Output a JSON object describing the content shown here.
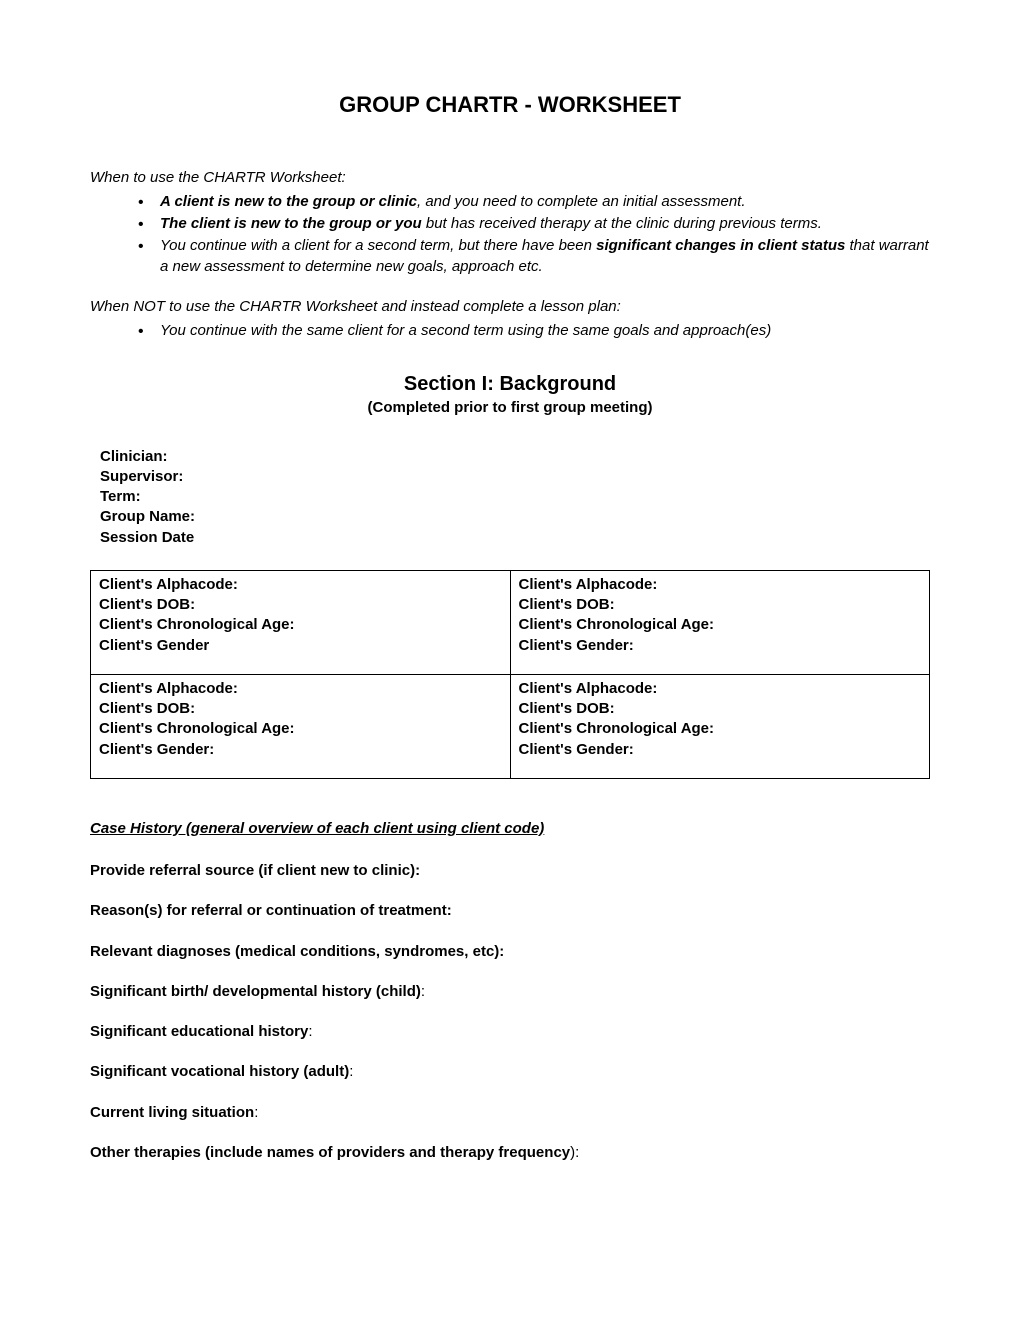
{
  "title": "GROUP CHARTR - WORKSHEET",
  "whenUse": {
    "heading": "When to use the CHARTR Worksheet:",
    "items": [
      {
        "bold": "A client is new to the group or clinic",
        "rest": ", and you need to complete an initial assessment."
      },
      {
        "bold": "The client is new to the group or you",
        "rest": " but has received therapy at the clinic during previous terms."
      },
      {
        "pre": "You continue with a client for a second term, but there have been ",
        "bold": "significant changes in client status",
        "rest": " that warrant a new assessment to determine new goals, approach etc."
      }
    ]
  },
  "whenNot": {
    "heading": "When NOT to use the CHARTR Worksheet and instead complete a lesson plan:",
    "items": [
      {
        "text": "You continue with the same client for a second term using the same goals and approach(es)"
      }
    ]
  },
  "section": {
    "title": "Section I: Background",
    "subtitle": "(Completed prior to first group meeting)"
  },
  "info": {
    "clinician": "Clinician:",
    "supervisor": "Supervisor:",
    "term": "Term:",
    "groupName": "Group Name:",
    "sessionDate": "Session Date"
  },
  "clientFields": {
    "alphacode": "Client's Alphacode:",
    "dob": "Client's DOB:",
    "age": "Client's Chronological Age:",
    "gender": "Client's Gender",
    "genderColon": "Client's Gender:"
  },
  "caseHistory": {
    "heading": "Case History (general overview of each client using client code)",
    "prompts": {
      "referralSource": "Provide referral source (if client new to clinic):",
      "reasons": "Reason(s) for referral or continuation of treatment:",
      "diagnoses": "Relevant diagnoses (medical conditions, syndromes, etc):",
      "birth": {
        "bold": "Significant birth/ developmental history (child)",
        "rest": ":"
      },
      "education": {
        "bold": "Significant educational history",
        "rest": ":"
      },
      "vocation": {
        "bold": "Significant vocational history (adult)",
        "rest": ":"
      },
      "living": {
        "bold": "Current living situation",
        "rest": ":"
      },
      "other": {
        "bold": "Other therapies (include names of providers and therapy frequency",
        "rest": "):"
      }
    }
  }
}
